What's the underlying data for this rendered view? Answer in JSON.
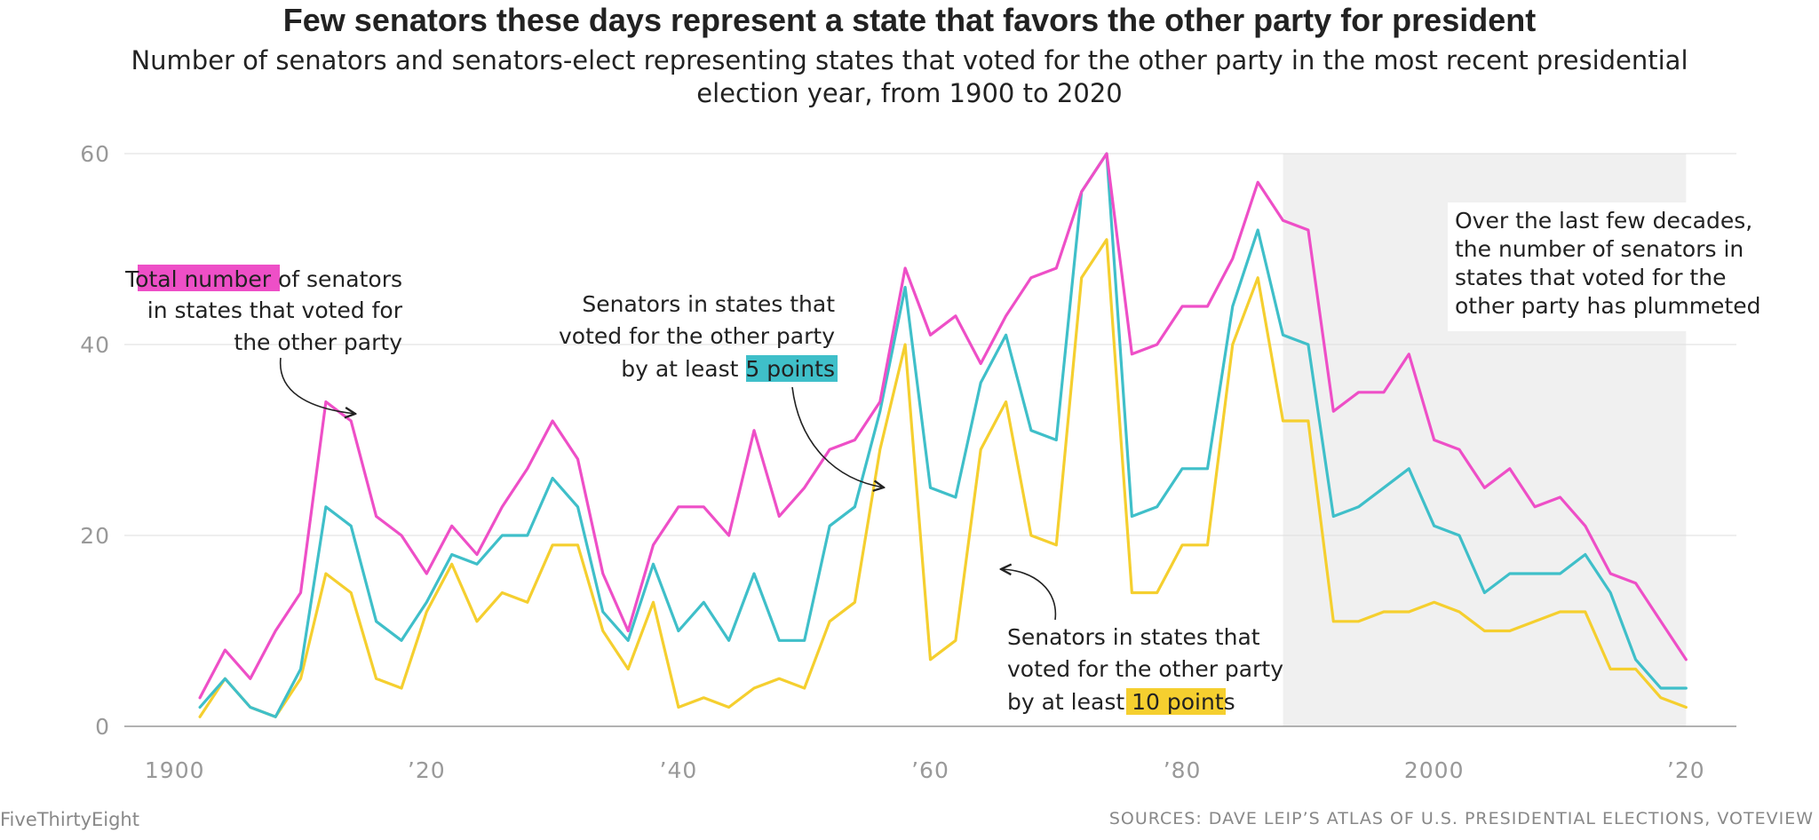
{
  "title": "Few senators these days represent a state that favors the other party for president",
  "subtitle": "Number of senators and senators-elect representing states that voted for the other party in the most recent presidential election year, from 1900 to 2020",
  "brand": "FiveThirtyEight",
  "source": "SOURCES: DAVE LEIP’S ATLAS OF U.S. PRESIDENTIAL ELECTIONS, VOTEVIEW",
  "colors": {
    "total": "#ee4fc7",
    "five": "#3fbfc9",
    "ten": "#f5cf2f",
    "shade": "#f0f0f0",
    "grid": "#dedede",
    "axis": "#999999"
  },
  "annotations": {
    "total": {
      "highlight": "Total number",
      "rest1": " of senators",
      "line2": "in states that voted for",
      "line3": "the other party"
    },
    "five": {
      "line1": "Senators in states that",
      "line2": "voted for the other party",
      "line3pre": "by at least ",
      "highlight": "5 points"
    },
    "ten": {
      "line1": "Senators in states that",
      "line2": "voted for the other party",
      "line3pre": "by at least ",
      "highlight": "10 points"
    },
    "recent": {
      "line1": "Over the last few decades,",
      "line2": "the number of senators in",
      "line3": "states that voted for the",
      "line4": "other party has plummeted"
    }
  },
  "chart_data": {
    "type": "line",
    "title": "Few senators these days represent a state that favors the other party for president",
    "x_tick_labels": [
      "1900",
      "’20",
      "’40",
      "’60",
      "’80",
      "2000",
      "’20"
    ],
    "x_tick_values": [
      1900,
      1920,
      1940,
      1960,
      1980,
      2000,
      2020
    ],
    "y_ticks": [
      0,
      20,
      40,
      60
    ],
    "xlim": [
      1896,
      2024
    ],
    "ylim": [
      0,
      60
    ],
    "shaded_range": [
      1988,
      2020
    ],
    "x": [
      1902,
      1904,
      1906,
      1908,
      1910,
      1912,
      1914,
      1916,
      1918,
      1920,
      1922,
      1924,
      1926,
      1928,
      1930,
      1932,
      1934,
      1936,
      1938,
      1940,
      1942,
      1944,
      1946,
      1948,
      1950,
      1952,
      1954,
      1956,
      1958,
      1960,
      1962,
      1964,
      1966,
      1968,
      1970,
      1972,
      1974,
      1976,
      1978,
      1980,
      1982,
      1984,
      1986,
      1988,
      1990,
      1992,
      1994,
      1996,
      1998,
      2000,
      2002,
      2004,
      2006,
      2008,
      2010,
      2012,
      2014,
      2016,
      2018,
      2020
    ],
    "series": [
      {
        "key": "total",
        "values": [
          3,
          8,
          5,
          10,
          14,
          34,
          32,
          22,
          20,
          16,
          21,
          18,
          23,
          27,
          32,
          28,
          16,
          10,
          19,
          23,
          23,
          20,
          31,
          22,
          25,
          29,
          30,
          34,
          48,
          41,
          43,
          38,
          43,
          47,
          48,
          56,
          60,
          39,
          40,
          44,
          44,
          49,
          57,
          53,
          52,
          33,
          35,
          35,
          39,
          30,
          29,
          25,
          27,
          23,
          24,
          21,
          16,
          15,
          11,
          7
        ]
      },
      {
        "key": "five",
        "values": [
          2,
          5,
          2,
          1,
          6,
          23,
          21,
          11,
          9,
          13,
          18,
          17,
          20,
          20,
          26,
          23,
          12,
          9,
          17,
          10,
          13,
          9,
          16,
          9,
          9,
          21,
          23,
          33,
          46,
          25,
          24,
          36,
          41,
          31,
          30,
          56,
          60,
          22,
          23,
          27,
          27,
          44,
          52,
          41,
          40,
          22,
          23,
          25,
          27,
          21,
          20,
          14,
          16,
          16,
          16,
          18,
          14,
          7,
          4,
          4
        ]
      },
      {
        "key": "ten",
        "values": [
          1,
          5,
          2,
          1,
          5,
          16,
          14,
          5,
          4,
          12,
          17,
          11,
          14,
          13,
          19,
          19,
          10,
          6,
          13,
          2,
          3,
          2,
          4,
          5,
          4,
          11,
          13,
          29,
          40,
          7,
          9,
          29,
          34,
          20,
          19,
          47,
          51,
          14,
          14,
          19,
          19,
          40,
          47,
          32,
          32,
          11,
          11,
          12,
          12,
          13,
          12,
          10,
          10,
          11,
          12,
          12,
          6,
          6,
          3,
          2
        ]
      }
    ]
  }
}
